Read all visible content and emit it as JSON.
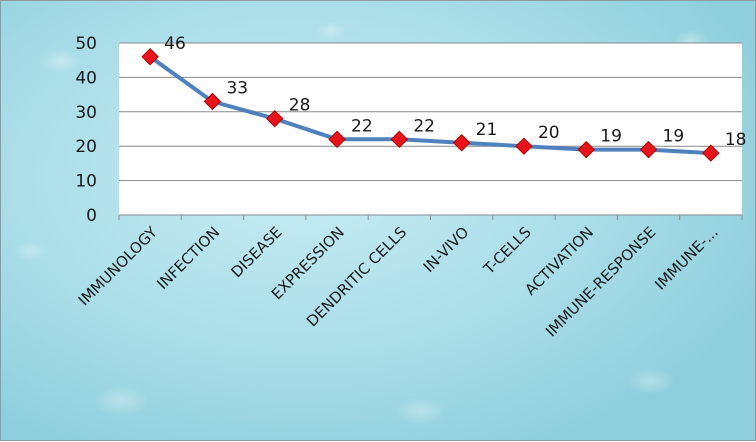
{
  "chart_data": {
    "type": "line",
    "categories": [
      "IMMUNOLOGY",
      "INFECTION",
      "DISEASE",
      "EXPRESSION",
      "DENDRITIC CELLS",
      "IN-VIVO",
      "T-CELLS",
      "ACTIVATION",
      "IMMUNE-RESPONSE",
      "IMMUNE-..."
    ],
    "values": [
      46,
      33,
      28,
      22,
      22,
      21,
      20,
      19,
      19,
      18
    ],
    "data_labels": [
      "46",
      "33",
      "28",
      "22",
      "22",
      "21",
      "20",
      "19",
      "19",
      "18"
    ],
    "yticks": [
      "0",
      "10",
      "20",
      "30",
      "40",
      "50"
    ],
    "ylim": [
      0,
      50
    ],
    "grid": true,
    "legend": "none",
    "line_color": "#4f81bd",
    "marker_color": "#e8141b",
    "marker": "diamond"
  }
}
